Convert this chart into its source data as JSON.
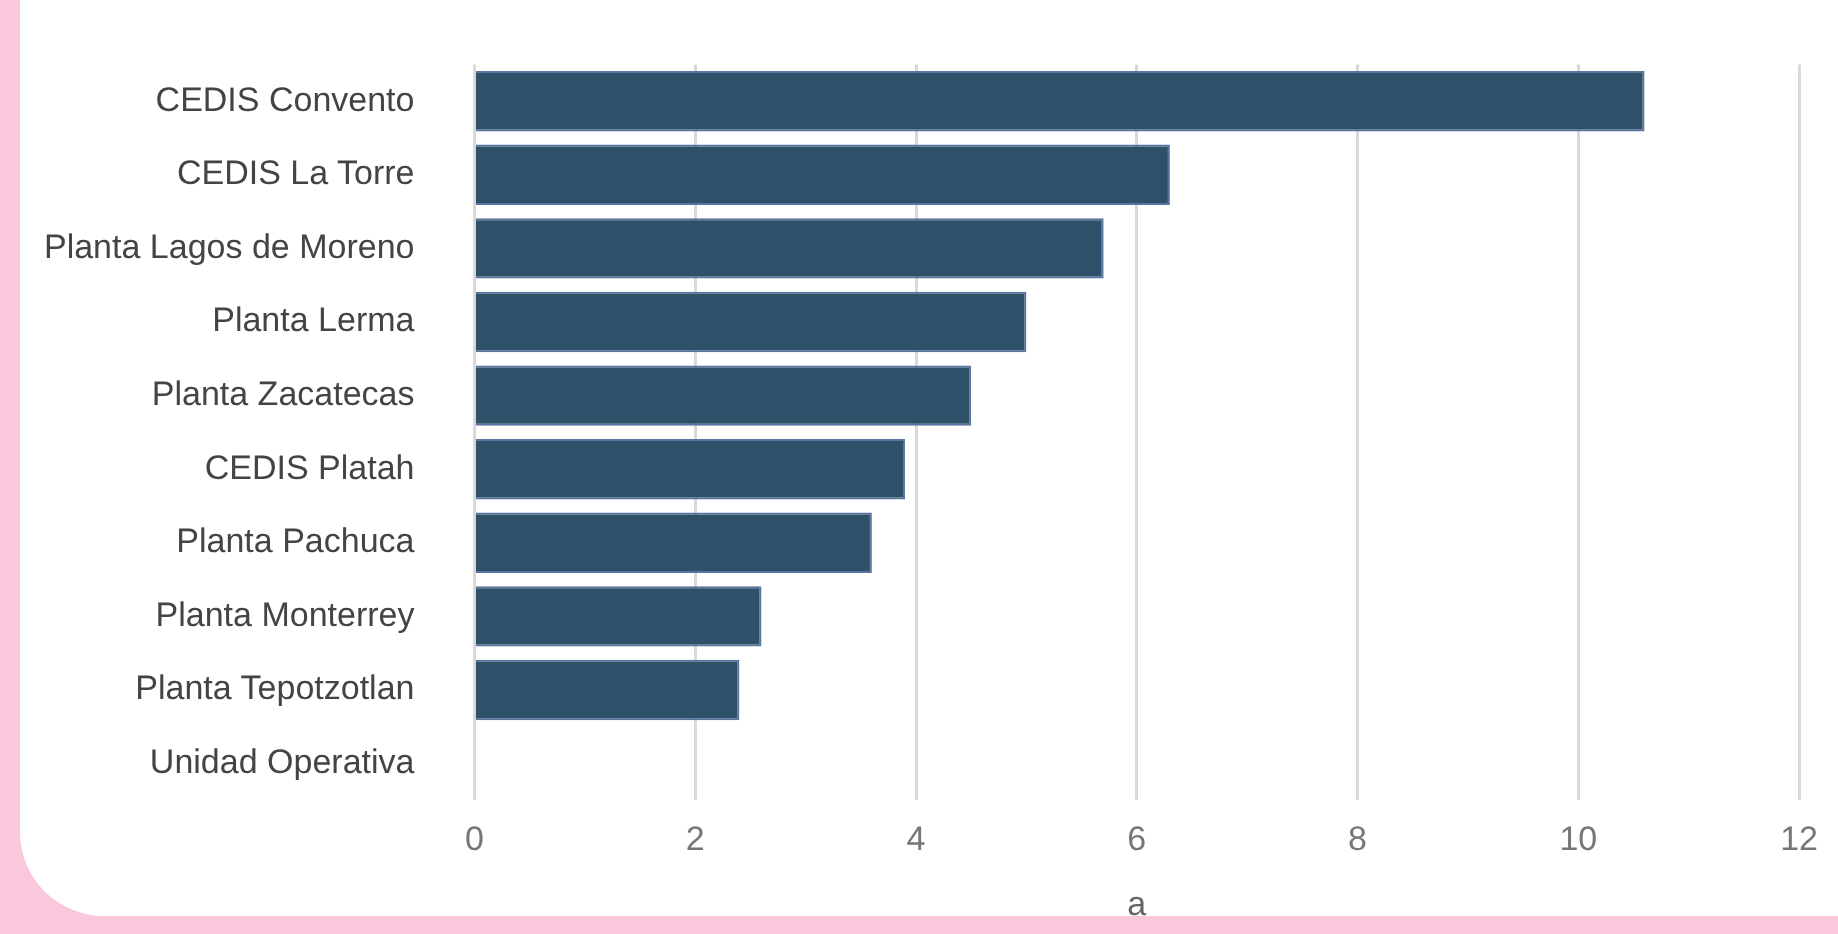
{
  "chart_data": {
    "type": "bar",
    "orientation": "horizontal",
    "xlabel": "a",
    "categories": [
      "CEDIS Convento",
      "CEDIS La Torre",
      "Planta Lagos de Moreno",
      "Planta Lerma",
      "Planta Zacatecas",
      "CEDIS Platah",
      "Planta Pachuca",
      "Planta Monterrey",
      "Planta Tepotzotlan",
      "Unidad Operativa"
    ],
    "values": [
      10.6,
      6.3,
      5.7,
      5.0,
      4.5,
      3.9,
      3.6,
      2.6,
      2.4,
      0
    ],
    "color": "#2f5069",
    "xlim": [
      0,
      12
    ],
    "xticks": [
      0,
      2,
      4,
      6,
      8,
      10,
      12
    ],
    "grid": "x",
    "legend": false
  }
}
